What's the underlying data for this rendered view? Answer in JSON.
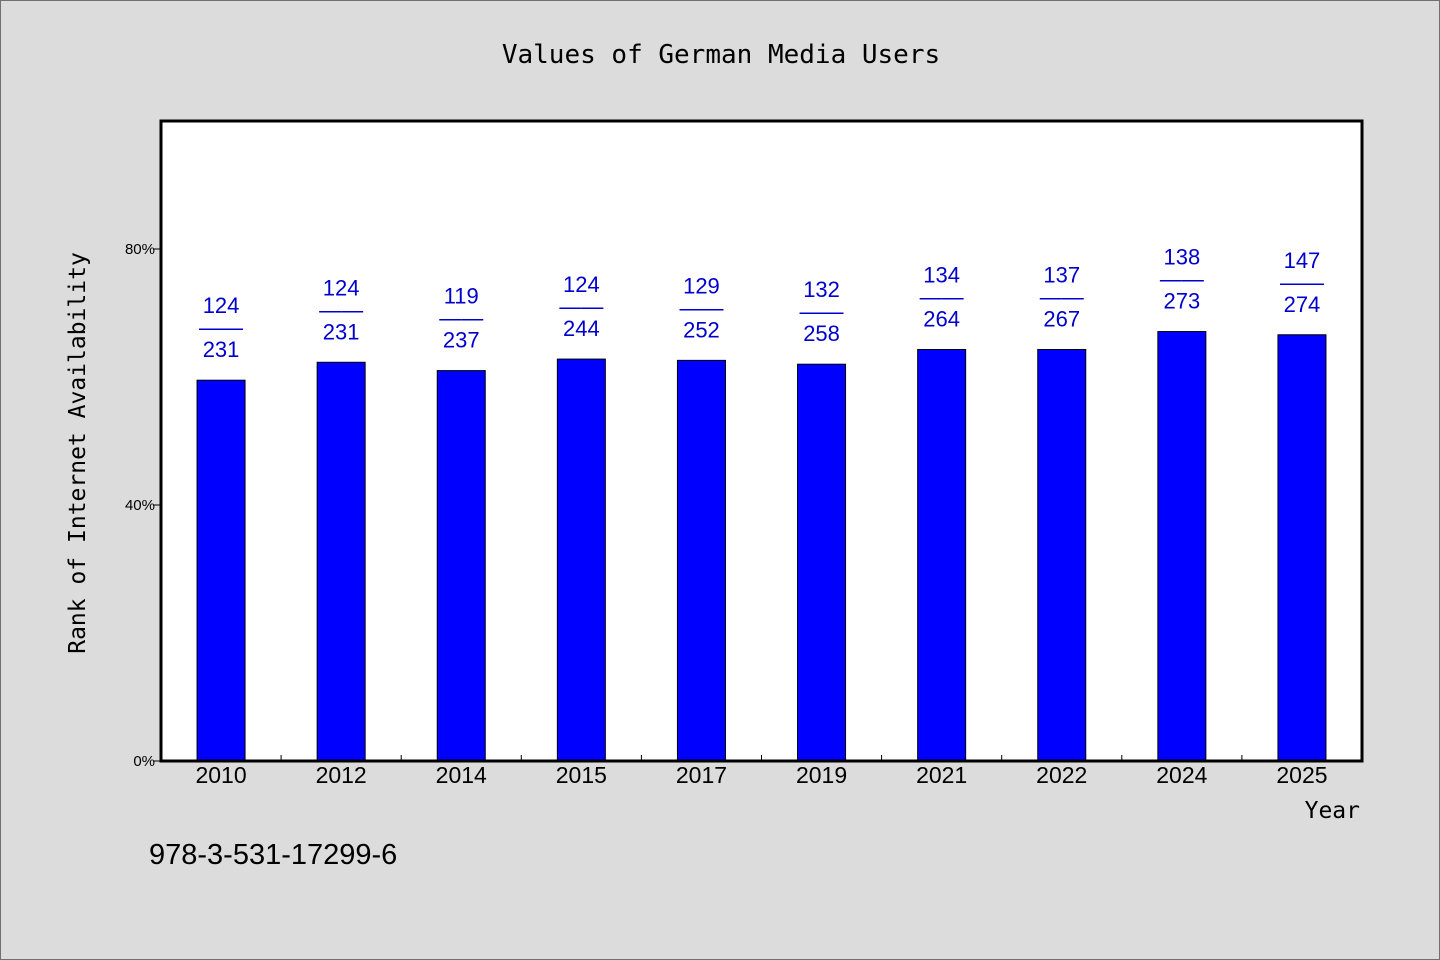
{
  "colors": {
    "background": "#dcdcdc",
    "plot_background": "#ffffff",
    "bar_fill": "#0000ff",
    "bar_stroke": "#000000",
    "label_color": "#0000cc",
    "axis_color": "#000000"
  },
  "footnote": "978-3-531-17299-6",
  "chart_data": {
    "type": "bar",
    "title": "Values of German Media Users",
    "xlabel": "Year",
    "ylabel": "Rank of Internet Availability",
    "categories": [
      "2010",
      "2012",
      "2014",
      "2015",
      "2017",
      "2019",
      "2021",
      "2022",
      "2024",
      "2025"
    ],
    "values": [
      59.5,
      62.3,
      61.0,
      62.8,
      62.6,
      62.0,
      64.3,
      64.3,
      67.1,
      66.6
    ],
    "ylim": [
      0,
      100
    ],
    "yticks": [
      {
        "value": 0,
        "label": "0%"
      },
      {
        "value": 40,
        "label": "40%"
      },
      {
        "value": 80,
        "label": "80%"
      }
    ],
    "data_labels": [
      {
        "top": "124",
        "sep": "——",
        "bottom": "231"
      },
      {
        "top": "124",
        "sep": "——",
        "bottom": "231"
      },
      {
        "top": "119",
        "sep": "——",
        "bottom": "237"
      },
      {
        "top": "124",
        "sep": "——",
        "bottom": "244"
      },
      {
        "top": "129",
        "sep": "——",
        "bottom": "252"
      },
      {
        "top": "132",
        "sep": "——",
        "bottom": "258"
      },
      {
        "top": "134",
        "sep": "——",
        "bottom": "264"
      },
      {
        "top": "137",
        "sep": "——",
        "bottom": "267"
      },
      {
        "top": "138",
        "sep": "——",
        "bottom": "273"
      },
      {
        "top": "147",
        "sep": "——",
        "bottom": "274"
      }
    ],
    "grid": false,
    "legend": "none"
  }
}
